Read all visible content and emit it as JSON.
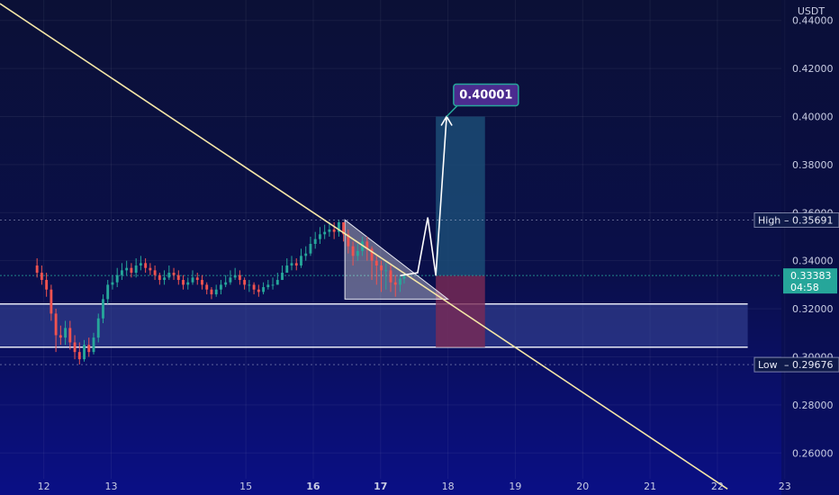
{
  "chart_data": {
    "type": "candlestick",
    "title": "",
    "currency": "USDT",
    "x_ticks": [
      "12",
      "13",
      "15",
      "16",
      "17",
      "18",
      "19",
      "20",
      "21",
      "22",
      "23"
    ],
    "x_bold": [
      "16",
      "17"
    ],
    "y_ticks": [
      "0.44000",
      "0.42000",
      "0.40000",
      "0.38000",
      "0.36000",
      "0.34000",
      "0.32000",
      "0.30000",
      "0.28000",
      "0.26000"
    ],
    "ylim": [
      0.2425,
      0.4485
    ],
    "grid": true,
    "series": [
      {
        "name": "",
        "times": [
          11.9,
          11.97,
          12.04,
          12.11,
          12.18,
          12.25,
          12.32,
          12.39,
          12.46,
          12.53,
          12.6,
          12.67,
          12.74,
          12.81,
          12.88,
          12.95,
          13.02,
          13.09,
          13.16,
          13.23,
          13.3,
          13.37,
          13.44,
          13.51,
          13.58,
          13.65,
          13.72,
          13.79,
          13.86,
          13.93,
          14.0,
          14.07,
          14.14,
          14.21,
          14.28,
          14.35,
          14.42,
          14.49,
          14.56,
          14.63,
          14.7,
          14.77,
          14.84,
          14.91,
          14.98,
          15.05,
          15.12,
          15.19,
          15.26,
          15.33,
          15.4,
          15.47,
          15.54,
          15.61,
          15.68,
          15.75,
          15.82,
          15.89,
          15.96,
          16.03,
          16.1,
          16.17,
          16.24,
          16.31,
          16.38,
          16.45,
          16.52,
          16.59,
          16.66,
          16.73,
          16.8,
          16.87,
          16.94,
          17.01,
          17.08,
          17.15,
          17.22,
          17.29,
          17.35
        ],
        "open": [
          0.338,
          0.335,
          0.332,
          0.328,
          0.318,
          0.309,
          0.308,
          0.312,
          0.306,
          0.302,
          0.299,
          0.305,
          0.302,
          0.308,
          0.316,
          0.324,
          0.33,
          0.331,
          0.334,
          0.336,
          0.337,
          0.335,
          0.338,
          0.339,
          0.337,
          0.336,
          0.334,
          0.332,
          0.333,
          0.335,
          0.334,
          0.332,
          0.33,
          0.331,
          0.333,
          0.332,
          0.33,
          0.328,
          0.326,
          0.328,
          0.33,
          0.331,
          0.333,
          0.334,
          0.332,
          0.33,
          0.33,
          0.328,
          0.327,
          0.329,
          0.33,
          0.33,
          0.332,
          0.335,
          0.338,
          0.339,
          0.338,
          0.342,
          0.343,
          0.347,
          0.349,
          0.351,
          0.352,
          0.353,
          0.352,
          0.356,
          0.351,
          0.346,
          0.342,
          0.344,
          0.348,
          0.345,
          0.34,
          0.338,
          0.336,
          0.336,
          0.331,
          0.33,
          0.3325
        ],
        "close": [
          0.335,
          0.332,
          0.328,
          0.318,
          0.309,
          0.308,
          0.312,
          0.306,
          0.302,
          0.299,
          0.305,
          0.302,
          0.308,
          0.316,
          0.324,
          0.33,
          0.331,
          0.334,
          0.336,
          0.337,
          0.335,
          0.338,
          0.339,
          0.337,
          0.336,
          0.334,
          0.332,
          0.333,
          0.335,
          0.334,
          0.332,
          0.33,
          0.331,
          0.333,
          0.332,
          0.33,
          0.328,
          0.326,
          0.328,
          0.33,
          0.331,
          0.333,
          0.334,
          0.332,
          0.33,
          0.33,
          0.328,
          0.327,
          0.329,
          0.33,
          0.33,
          0.332,
          0.335,
          0.338,
          0.339,
          0.338,
          0.342,
          0.343,
          0.347,
          0.349,
          0.351,
          0.352,
          0.353,
          0.352,
          0.356,
          0.351,
          0.346,
          0.342,
          0.344,
          0.348,
          0.345,
          0.34,
          0.338,
          0.336,
          0.336,
          0.331,
          0.33,
          0.3325,
          0.3338
        ],
        "high": [
          0.341,
          0.338,
          0.335,
          0.33,
          0.32,
          0.313,
          0.315,
          0.315,
          0.309,
          0.306,
          0.307,
          0.308,
          0.31,
          0.318,
          0.326,
          0.332,
          0.334,
          0.337,
          0.339,
          0.34,
          0.339,
          0.341,
          0.342,
          0.341,
          0.339,
          0.338,
          0.335,
          0.336,
          0.338,
          0.337,
          0.336,
          0.334,
          0.333,
          0.336,
          0.335,
          0.334,
          0.331,
          0.329,
          0.33,
          0.332,
          0.334,
          0.336,
          0.337,
          0.336,
          0.333,
          0.332,
          0.331,
          0.33,
          0.331,
          0.332,
          0.333,
          0.335,
          0.338,
          0.341,
          0.342,
          0.341,
          0.345,
          0.346,
          0.35,
          0.352,
          0.354,
          0.355,
          0.356,
          0.356,
          0.357,
          0.356,
          0.353,
          0.348,
          0.347,
          0.35,
          0.35,
          0.346,
          0.342,
          0.34,
          0.339,
          0.338,
          0.334,
          0.334,
          0.3345
        ],
        "low": [
          0.333,
          0.33,
          0.325,
          0.315,
          0.302,
          0.305,
          0.305,
          0.303,
          0.299,
          0.2968,
          0.298,
          0.3,
          0.301,
          0.306,
          0.314,
          0.322,
          0.328,
          0.329,
          0.332,
          0.334,
          0.333,
          0.333,
          0.336,
          0.335,
          0.334,
          0.332,
          0.33,
          0.33,
          0.332,
          0.332,
          0.33,
          0.328,
          0.328,
          0.33,
          0.33,
          0.328,
          0.326,
          0.324,
          0.325,
          0.326,
          0.329,
          0.33,
          0.332,
          0.33,
          0.328,
          0.327,
          0.326,
          0.325,
          0.326,
          0.328,
          0.328,
          0.33,
          0.332,
          0.335,
          0.336,
          0.336,
          0.337,
          0.34,
          0.342,
          0.345,
          0.347,
          0.349,
          0.35,
          0.349,
          0.35,
          0.348,
          0.343,
          0.338,
          0.34,
          0.342,
          0.34,
          0.332,
          0.33,
          0.327,
          0.328,
          0.327,
          0.325,
          0.327,
          0.3305
        ]
      }
    ],
    "trendline": {
      "start": [
        11.35,
        0.447
      ],
      "end": [
        22.15,
        0.245
      ]
    },
    "triangle": {
      "points": [
        [
          16.47,
          0.357
        ],
        [
          18.0,
          0.324
        ],
        [
          16.47,
          0.324
        ]
      ]
    },
    "zone": {
      "top": 0.322,
      "bottom": 0.304,
      "x_start": 11.35,
      "x_end": 22.45
    },
    "position": {
      "x_start": 17.82,
      "x_end": 18.55,
      "entry": 0.3338,
      "target": 0.4,
      "stop": 0.304
    },
    "projection": [
      [
        17.29,
        0.3338
      ],
      [
        17.55,
        0.335
      ],
      [
        17.7,
        0.358
      ],
      [
        17.82,
        0.3338
      ],
      [
        17.98,
        0.4
      ]
    ],
    "target_label": "0.40001",
    "high": {
      "label": "High",
      "value": 0.35691,
      "text": "0.35691"
    },
    "low": {
      "label": "Low",
      "value": 0.29676,
      "text": "0.29676"
    },
    "current": {
      "value": 0.33383,
      "text": "0.33383",
      "countdown": "04:58"
    },
    "colors": {
      "up": "#26a69a",
      "down": "#ef5350",
      "trendline": "#f5e7a6",
      "zone_fill": "#3c4a9c",
      "position_profit": "#1c4f78",
      "position_loss": "#7a2a55",
      "current_price": "#26a69a",
      "target_label": "#4b2b8f",
      "target_border": "#26a69a"
    }
  }
}
